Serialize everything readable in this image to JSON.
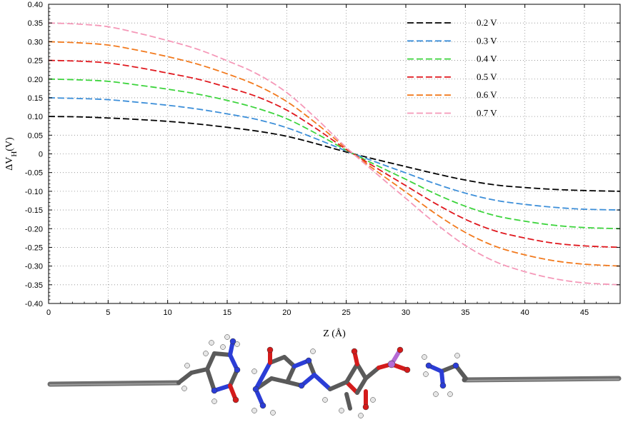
{
  "chart_data": {
    "type": "line",
    "xlabel": "Z (Å)",
    "ylabel_main": "ΔV",
    "ylabel_sub": "H",
    "ylabel_unit": "(V)",
    "xlim": [
      0,
      48
    ],
    "ylim": [
      -0.4,
      0.4
    ],
    "xticks": [
      "0",
      "5",
      "10",
      "15",
      "20",
      "25",
      "30",
      "35",
      "40",
      "45"
    ],
    "yticks": [
      "0.40",
      "0.35",
      "0.30",
      "0.25",
      "0.20",
      "0.15",
      "0.10",
      "0.05",
      "0",
      "-0.05",
      "-0.10",
      "-0.15",
      "-0.20",
      "-0.25",
      "-0.30",
      "-0.35",
      "-0.40"
    ],
    "grid": true,
    "legend_position": "top-right",
    "x": [
      0,
      2.5,
      5,
      7.5,
      10,
      12.5,
      15,
      17.5,
      20,
      22.5,
      25,
      27.5,
      30,
      32.5,
      35,
      37.5,
      40,
      42.5,
      45,
      48
    ],
    "series": [
      {
        "name": "0.2 V",
        "color": "#000000",
        "values": [
          0.1,
          0.099,
          0.096,
          0.092,
          0.087,
          0.08,
          0.071,
          0.061,
          0.047,
          0.027,
          0.005,
          -0.015,
          -0.034,
          -0.053,
          -0.07,
          -0.083,
          -0.09,
          -0.095,
          -0.098,
          -0.1
        ]
      },
      {
        "name": "0.3 V",
        "color": "#3d8fd9",
        "values": [
          0.15,
          0.148,
          0.145,
          0.138,
          0.13,
          0.12,
          0.107,
          0.092,
          0.07,
          0.04,
          0.008,
          -0.022,
          -0.051,
          -0.08,
          -0.105,
          -0.124,
          -0.135,
          -0.143,
          -0.148,
          -0.15
        ]
      },
      {
        "name": "0.4 V",
        "color": "#3cd43c",
        "values": [
          0.2,
          0.198,
          0.194,
          0.184,
          0.173,
          0.16,
          0.143,
          0.122,
          0.094,
          0.054,
          0.01,
          -0.03,
          -0.068,
          -0.107,
          -0.14,
          -0.165,
          -0.18,
          -0.191,
          -0.197,
          -0.2
        ]
      },
      {
        "name": "0.5 V",
        "color": "#e0181e",
        "values": [
          0.25,
          0.248,
          0.243,
          0.231,
          0.216,
          0.2,
          0.178,
          0.153,
          0.117,
          0.067,
          0.012,
          -0.037,
          -0.085,
          -0.133,
          -0.175,
          -0.206,
          -0.225,
          -0.239,
          -0.246,
          -0.25
        ]
      },
      {
        "name": "0.6 V",
        "color": "#f27a1e",
        "values": [
          0.3,
          0.297,
          0.291,
          0.277,
          0.26,
          0.24,
          0.214,
          0.183,
          0.14,
          0.081,
          0.015,
          -0.045,
          -0.102,
          -0.16,
          -0.21,
          -0.247,
          -0.27,
          -0.286,
          -0.295,
          -0.3
        ]
      },
      {
        "name": "0.7 V",
        "color": "#f598b8",
        "values": [
          0.35,
          0.347,
          0.34,
          0.323,
          0.303,
          0.28,
          0.249,
          0.214,
          0.164,
          0.094,
          0.017,
          -0.052,
          -0.119,
          -0.186,
          -0.245,
          -0.288,
          -0.315,
          -0.334,
          -0.345,
          -0.35
        ]
      }
    ]
  },
  "molecule_colors": {
    "carbon": "#5a5a5a",
    "nitrogen": "#2b3dd6",
    "oxygen": "#d41b1b",
    "hydrogen": "#e6e6e6",
    "phosphorus": "#b46ad4"
  }
}
